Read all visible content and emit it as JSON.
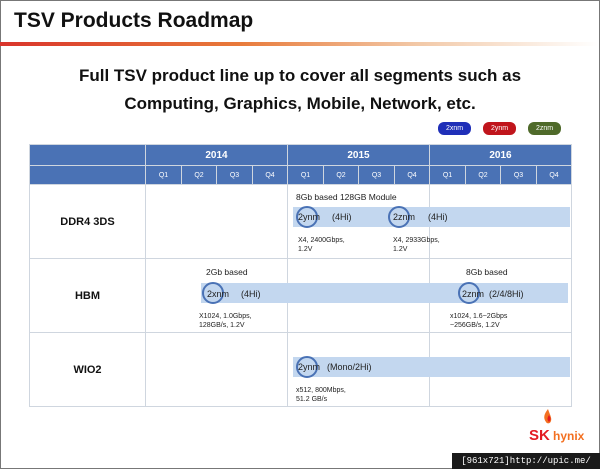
{
  "title": "TSV Products Roadmap",
  "headline": {
    "line1": "Full TSV product line up to cover all segments such as",
    "line2": "Computing, Graphics, Mobile, Network, etc."
  },
  "legend": [
    {
      "label": "2xnm",
      "color": "#1f2fb8"
    },
    {
      "label": "2ynm",
      "color": "#c0151c"
    },
    {
      "label": "2znm",
      "color": "#4f6a2a"
    }
  ],
  "years": [
    "2014",
    "2015",
    "2016"
  ],
  "quarters": [
    "Q1",
    "Q2",
    "Q3",
    "Q4",
    "Q1",
    "Q2",
    "Q3",
    "Q4",
    "Q1",
    "Q2",
    "Q3",
    "Q4"
  ],
  "rows": {
    "ddr4": {
      "label": "DDR4 3DS",
      "note": "8Gb based 128GB Module",
      "item1": {
        "tech": "2ynm",
        "stack": "(4Hi)",
        "spec1": "X4, 2400Gbps,",
        "spec2": "1.2V"
      },
      "item2": {
        "tech": "2znm",
        "stack": "(4Hi)",
        "spec1": "X4, 2933Gbps,",
        "spec2": "1.2V"
      }
    },
    "hbm": {
      "label": "HBM",
      "note1": "2Gb based",
      "note2": "8Gb based",
      "item1": {
        "tech": "2xnm",
        "stack": "(4Hi)",
        "spec1": "X1024, 1.0Gbps,",
        "spec2": "128GB/s, 1.2V"
      },
      "item2": {
        "tech": "2znm",
        "stack": "(2/4/8Hi)",
        "spec1": "x1024, 1.6~2Gbps",
        "spec2": "~256GB/s, 1.2V"
      }
    },
    "wio2": {
      "label": "WIO2",
      "item1": {
        "tech": "2ynm",
        "stack": "(Mono/2Hi)",
        "spec1": "x512, 800Mbps,",
        "spec2": "51.2 GB/s"
      }
    }
  },
  "logo": {
    "sk": "SK",
    "hynix": "hynix"
  },
  "watermark": "[961x721]http://upic.me/"
}
